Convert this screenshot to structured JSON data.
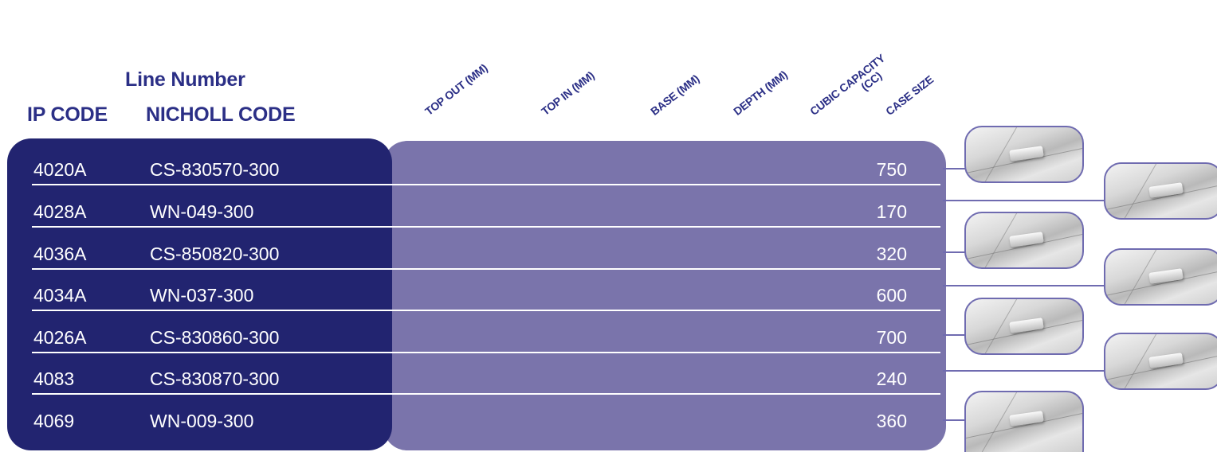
{
  "header": {
    "line_number": "Line Number",
    "ip_code": "IP CODE",
    "nicholl_code": "NICHOLL CODE"
  },
  "columns": [
    "TOP OUT (MM)",
    "TOP IN (MM)",
    "BASE (MM)",
    "DEPTH (MM)",
    "CUBIC CAPACITY",
    "(CC)",
    "CASE SIZE"
  ],
  "rows": [
    {
      "ip": "4020A",
      "nicholl": "CS-830570-300",
      "case_size": "750"
    },
    {
      "ip": "4028A",
      "nicholl": "WN-049-300",
      "case_size": "170"
    },
    {
      "ip": "4036A",
      "nicholl": "CS-850820-300",
      "case_size": "320"
    },
    {
      "ip": "4034A",
      "nicholl": "WN-037-300",
      "case_size": "600"
    },
    {
      "ip": "4026A",
      "nicholl": "CS-830860-300",
      "case_size": "700"
    },
    {
      "ip": "4083",
      "nicholl": "CS-830870-300",
      "case_size": "240"
    },
    {
      "ip": "4069",
      "nicholl": "WN-009-300",
      "case_size": "360"
    }
  ],
  "colors": {
    "header_text": "#2b2f86",
    "left_panel": "#222470",
    "right_panel": "#7a74ab",
    "thumb_border": "#6f6bb0"
  }
}
